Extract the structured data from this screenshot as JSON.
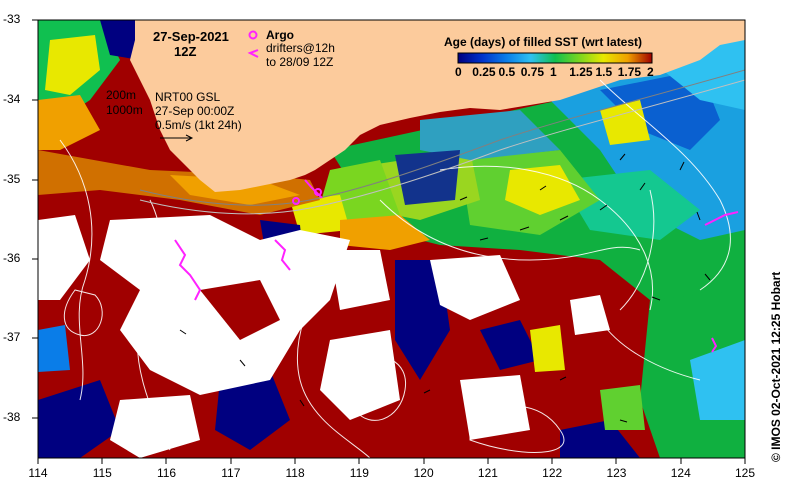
{
  "header": {
    "date": "27-Sep-2021",
    "time": "12Z",
    "argo_label": "Argo",
    "drifters_line1": "drifters@12h",
    "drifters_line2": "to 28/09 12Z",
    "depth_200": "200m",
    "depth_1000": "1000m",
    "product": "NRT00 GSL",
    "product_time": "27-Sep 00:00Z",
    "vector_scale": "0.5m/s (1kt 24h)"
  },
  "colorbar": {
    "title": "Age (days) of filled SST (wrt latest)",
    "ticks": [
      "0",
      "0.25",
      "0.5",
      "0.75",
      "1",
      "1.25",
      "1.5",
      "1.75",
      "2"
    ],
    "colors": [
      "#000080",
      "#0033cc",
      "#0a7de8",
      "#2fc1f1",
      "#10c050",
      "#7ad620",
      "#e8e800",
      "#f0a000",
      "#a00000"
    ]
  },
  "axes": {
    "lon_labels": [
      "114",
      "115",
      "116",
      "117",
      "118",
      "119",
      "120",
      "121",
      "122",
      "123",
      "124",
      "125"
    ],
    "lat_labels": [
      "-33",
      "-34",
      "-35",
      "-36",
      "-37",
      "-38"
    ]
  },
  "credit": "© IMOS 02-Oct-2021 12:25 Hobart",
  "palette": {
    "land": "#fccb9c",
    "missing": "#ffffff",
    "argo": "#ff22ff",
    "drifter": "#ff22ff",
    "contour": "#ffffff",
    "vector": "#000000"
  }
}
